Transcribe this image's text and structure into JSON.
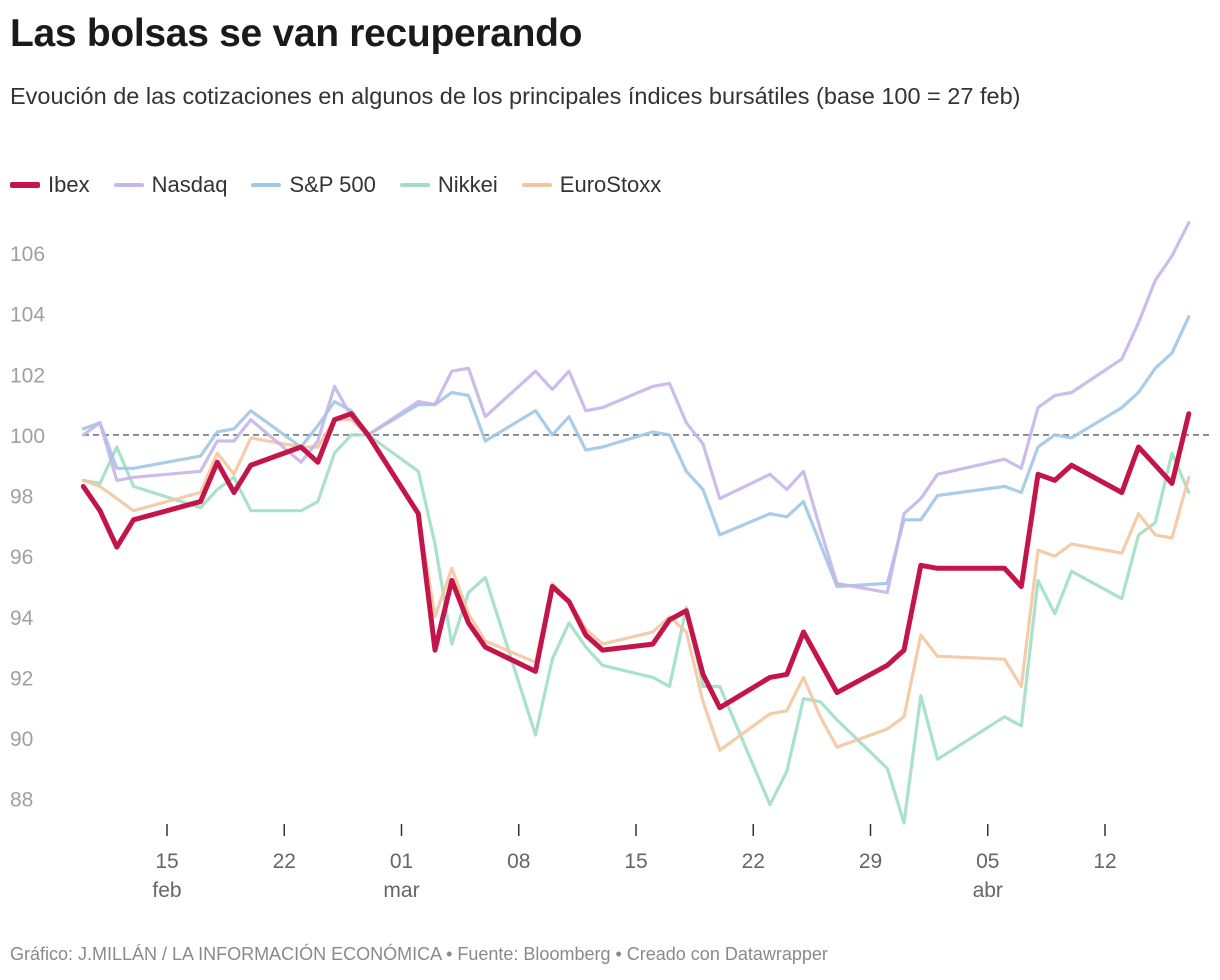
{
  "header": {
    "title": "Las bolsas se van recuperando",
    "subtitle": "Evoución de las cotizaciones en algunos de los principales índices bursátiles (base 100 = 27 feb)"
  },
  "footer": {
    "text": "Gráfico: J.MILLÁN / LA INFORMACIÓN ECONÓMICA • Fuente: Bloomberg • Creado con Datawrapper"
  },
  "chart_data": {
    "type": "line",
    "title": "Las bolsas se van recuperando",
    "xlabel": "",
    "ylabel": "",
    "ylim": [
      87,
      107
    ],
    "yticks": [
      88,
      90,
      92,
      94,
      96,
      98,
      100,
      102,
      104,
      106
    ],
    "reference_line": 100,
    "grid": false,
    "legend": "top-left",
    "xticks": [
      {
        "date": "02-15",
        "label": "15",
        "month": "feb"
      },
      {
        "date": "02-22",
        "label": "22",
        "month": ""
      },
      {
        "date": "03-01",
        "label": "01",
        "month": "mar"
      },
      {
        "date": "03-08",
        "label": "08",
        "month": ""
      },
      {
        "date": "03-15",
        "label": "15",
        "month": ""
      },
      {
        "date": "03-22",
        "label": "22",
        "month": ""
      },
      {
        "date": "03-29",
        "label": "29",
        "month": ""
      },
      {
        "date": "04-05",
        "label": "05",
        "month": "abr"
      },
      {
        "date": "04-12",
        "label": "12",
        "month": ""
      }
    ],
    "x": [
      "02-10",
      "02-11",
      "02-12",
      "02-13",
      "02-17",
      "02-18",
      "02-19",
      "02-20",
      "02-23",
      "02-24",
      "02-25",
      "02-26",
      "02-27",
      "03-02",
      "03-03",
      "03-04",
      "03-05",
      "03-06",
      "03-09",
      "03-10",
      "03-11",
      "03-12",
      "03-13",
      "03-16",
      "03-17",
      "03-18",
      "03-19",
      "03-20",
      "03-23",
      "03-24",
      "03-25",
      "03-26",
      "03-27",
      "03-30",
      "03-31",
      "04-01",
      "04-02",
      "04-06",
      "04-07",
      "04-08",
      "04-09",
      "04-10",
      "04-13",
      "04-14",
      "04-15",
      "04-16",
      "04-17"
    ],
    "series": [
      {
        "name": "Nikkei",
        "color": "#9edfc4",
        "values": [
          98.5,
          98.4,
          99.6,
          98.3,
          97.6,
          98.2,
          98.6,
          97.5,
          97.5,
          97.8,
          99.4,
          100.0,
          100.0,
          98.8,
          96.4,
          93.1,
          94.8,
          95.3,
          90.1,
          92.6,
          93.8,
          93.0,
          92.4,
          92.0,
          91.7,
          94.3,
          91.7,
          91.7,
          87.8,
          88.9,
          91.3,
          91.2,
          90.6,
          89.0,
          87.2,
          91.4,
          89.3,
          90.7,
          90.4,
          95.2,
          94.1,
          95.5,
          94.6,
          96.7,
          97.1,
          99.4,
          98.1
        ]
      },
      {
        "name": "EuroStoxx",
        "color": "#f3c6a0",
        "values": [
          98.5,
          98.3,
          97.9,
          97.5,
          98.1,
          99.4,
          98.7,
          99.9,
          99.6,
          99.6,
          100.5,
          100.5,
          100.0,
          97.4,
          94.0,
          95.6,
          94.1,
          93.2,
          92.5,
          95.1,
          94.5,
          93.6,
          93.1,
          93.5,
          94.0,
          93.5,
          91.2,
          89.6,
          90.8,
          90.9,
          92.0,
          90.7,
          89.7,
          90.3,
          90.7,
          93.4,
          92.7,
          92.6,
          91.7,
          96.2,
          96.0,
          96.4,
          96.1,
          97.4,
          96.7,
          96.6,
          98.6
        ]
      },
      {
        "name": "S&P 500",
        "color": "#a0c7e6",
        "values": [
          100.2,
          100.4,
          98.9,
          98.9,
          99.3,
          100.1,
          100.2,
          100.8,
          99.6,
          100.3,
          101.1,
          100.8,
          100.0,
          101.0,
          101.0,
          101.4,
          101.3,
          99.8,
          100.8,
          100.0,
          100.6,
          99.5,
          99.6,
          100.1,
          100.0,
          98.8,
          98.2,
          96.7,
          97.4,
          97.3,
          97.8,
          96.4,
          95.0,
          95.1,
          97.2,
          97.2,
          98.0,
          98.3,
          98.1,
          99.6,
          100.0,
          99.9,
          100.9,
          101.4,
          102.2,
          102.7,
          103.9
        ]
      },
      {
        "name": "Nasdaq",
        "color": "#c8b5e9",
        "values": [
          100.0,
          100.4,
          98.5,
          98.6,
          98.8,
          99.8,
          99.8,
          100.5,
          99.1,
          99.8,
          101.6,
          100.6,
          100.0,
          101.1,
          101.0,
          102.1,
          102.2,
          100.6,
          102.1,
          101.5,
          102.1,
          100.8,
          100.9,
          101.6,
          101.7,
          100.4,
          99.7,
          97.9,
          98.7,
          98.2,
          98.8,
          96.9,
          95.1,
          94.8,
          97.4,
          97.9,
          98.7,
          99.2,
          98.9,
          100.9,
          101.3,
          101.4,
          102.5,
          103.7,
          105.1,
          105.9,
          107.0
        ]
      },
      {
        "name": "Ibex",
        "color": "#c4154a",
        "values": [
          98.3,
          97.5,
          96.3,
          97.2,
          97.8,
          99.1,
          98.1,
          99.0,
          99.6,
          99.1,
          100.5,
          100.7,
          100.0,
          97.4,
          92.9,
          95.2,
          93.8,
          93.0,
          92.2,
          95.0,
          94.5,
          93.4,
          92.9,
          93.1,
          93.9,
          94.2,
          92.1,
          91.0,
          92.0,
          92.1,
          93.5,
          92.5,
          91.5,
          92.4,
          92.9,
          95.7,
          95.6,
          95.6,
          95.0,
          98.7,
          98.5,
          99.0,
          98.1,
          99.6,
          99.0,
          98.4,
          100.7
        ]
      }
    ],
    "legend_order": [
      "Ibex",
      "Nasdaq",
      "S&P 500",
      "Nikkei",
      "EuroStoxx"
    ]
  }
}
